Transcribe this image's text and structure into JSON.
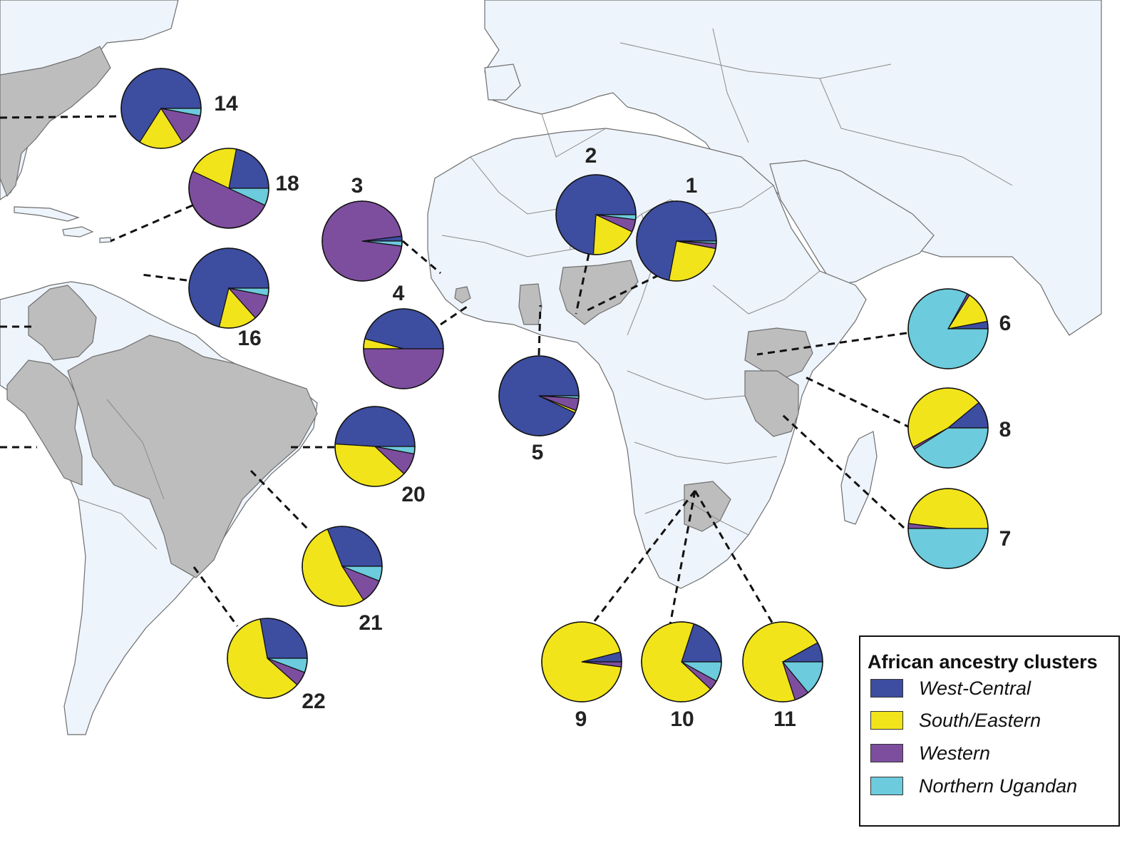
{
  "legend": {
    "title": "African ancestry clusters",
    "entries": [
      {
        "name": "West-Central",
        "color": "#3d4da0"
      },
      {
        "name": "South/Eastern",
        "color": "#f2e41a"
      },
      {
        "name": "Western",
        "color": "#7d4e9e"
      },
      {
        "name": "Northern Ugandan",
        "color": "#6ccbdc"
      }
    ]
  },
  "colors": {
    "land": "#eef4fb",
    "highlighted_country": "#bdbdbd",
    "border": "#6e6e6e"
  },
  "populations": [
    {
      "label": "1",
      "fractions": [
        0.72,
        0.25,
        0.02,
        0.01
      ]
    },
    {
      "label": "2",
      "fractions": [
        0.74,
        0.19,
        0.05,
        0.02
      ]
    },
    {
      "label": "3",
      "fractions": [
        0.02,
        0.0,
        0.96,
        0.02
      ]
    },
    {
      "label": "4",
      "fractions": [
        0.46,
        0.04,
        0.5,
        0.0
      ]
    },
    {
      "label": "5",
      "fractions": [
        0.93,
        0.01,
        0.05,
        0.01
      ]
    },
    {
      "label": "6",
      "fractions": [
        0.03,
        0.13,
        0.01,
        0.83
      ]
    },
    {
      "label": "7",
      "fractions": [
        0.0,
        0.48,
        0.02,
        0.5
      ]
    },
    {
      "label": "8",
      "fractions": [
        0.11,
        0.47,
        0.01,
        0.41
      ]
    },
    {
      "label": "9",
      "fractions": [
        0.04,
        0.94,
        0.02,
        0.0
      ]
    },
    {
      "label": "10",
      "fractions": [
        0.2,
        0.68,
        0.04,
        0.08
      ]
    },
    {
      "label": "11",
      "fractions": [
        0.08,
        0.72,
        0.06,
        0.14
      ]
    },
    {
      "label": "14",
      "fractions": [
        0.66,
        0.18,
        0.13,
        0.03
      ]
    },
    {
      "label": "16",
      "fractions": [
        0.69,
        0.15,
        0.1,
        0.03
      ]
    },
    {
      "label": "18",
      "fractions": [
        0.22,
        0.21,
        0.5,
        0.07
      ]
    },
    {
      "label": "20",
      "fractions": [
        0.49,
        0.39,
        0.09,
        0.03
      ]
    },
    {
      "label": "21",
      "fractions": [
        0.31,
        0.53,
        0.1,
        0.06
      ]
    },
    {
      "label": "22",
      "fractions": [
        0.29,
        0.63,
        0.06,
        0.06
      ]
    }
  ]
}
